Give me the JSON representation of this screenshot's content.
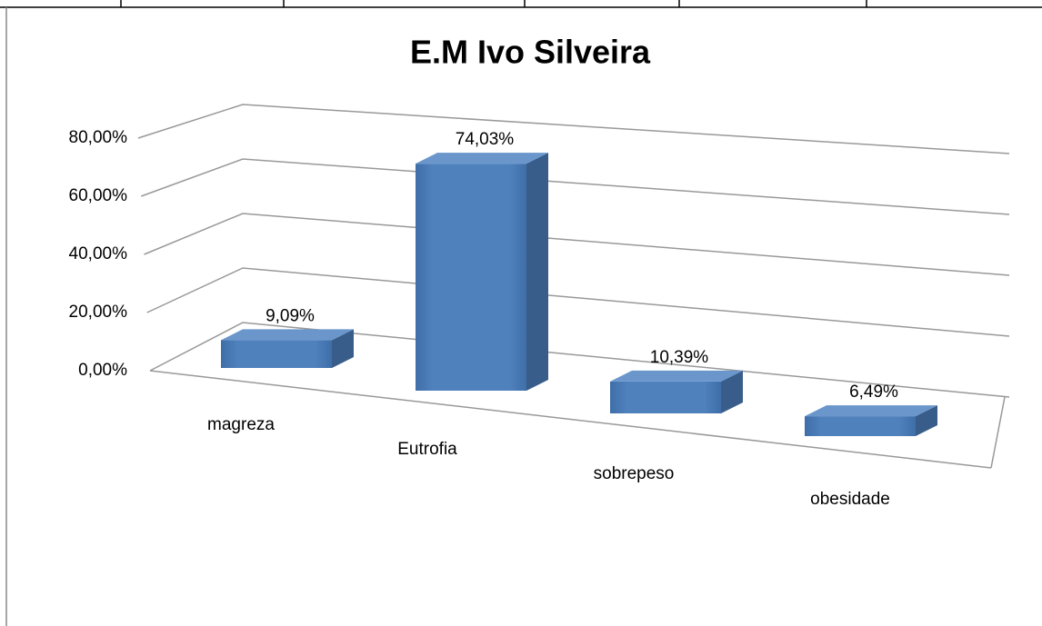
{
  "chart_data": {
    "type": "bar3d",
    "title": "E.M Ivo Silveira",
    "categories": [
      "magreza",
      "Eutrofia",
      "sobrepeso",
      "obesidade"
    ],
    "values": [
      9.09,
      74.03,
      10.39,
      6.49
    ],
    "value_labels": [
      "9,09%",
      "74,03%",
      "10,39%",
      "6,49%"
    ],
    "color": "#4f81bd",
    "ylim": [
      0,
      80
    ],
    "yticks": [
      {
        "value": 0,
        "label": "0,00%"
      },
      {
        "value": 20,
        "label": "20,00%"
      },
      {
        "value": 40,
        "label": "40,00%"
      },
      {
        "value": 60,
        "label": "60,00%"
      },
      {
        "value": 80,
        "label": "80,00%"
      }
    ],
    "grid": true
  }
}
